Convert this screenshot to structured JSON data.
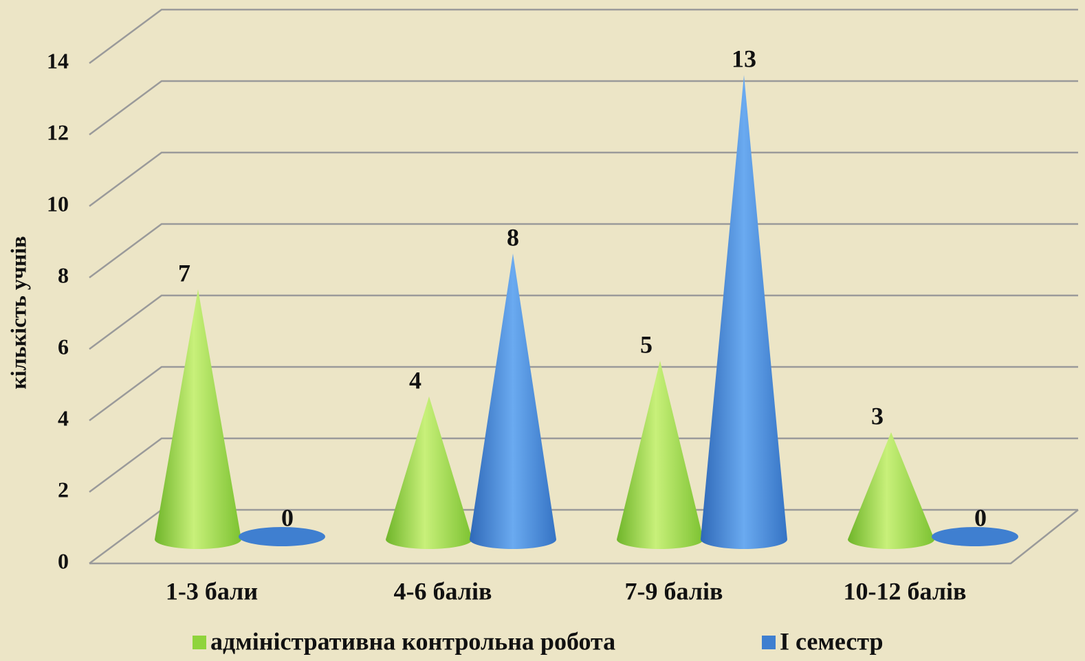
{
  "chart_data": {
    "type": "cone3d",
    "y_label": "кількість учнів",
    "categories": [
      "1-3 бали",
      "4-6 балів",
      "7-9 балів",
      "10-12 балів"
    ],
    "series": [
      {
        "name": "адміністративна контрольна робота",
        "color": "#8fd43c",
        "values": [
          7,
          4,
          5,
          3
        ]
      },
      {
        "name": "І семестр",
        "color": "#3f7fd0",
        "values": [
          0,
          8,
          13,
          0
        ]
      }
    ],
    "ylim": [
      0,
      14
    ],
    "yticks": [
      0,
      2,
      4,
      6,
      8,
      10,
      12,
      14
    ],
    "grid": true,
    "legend": "bottom"
  }
}
